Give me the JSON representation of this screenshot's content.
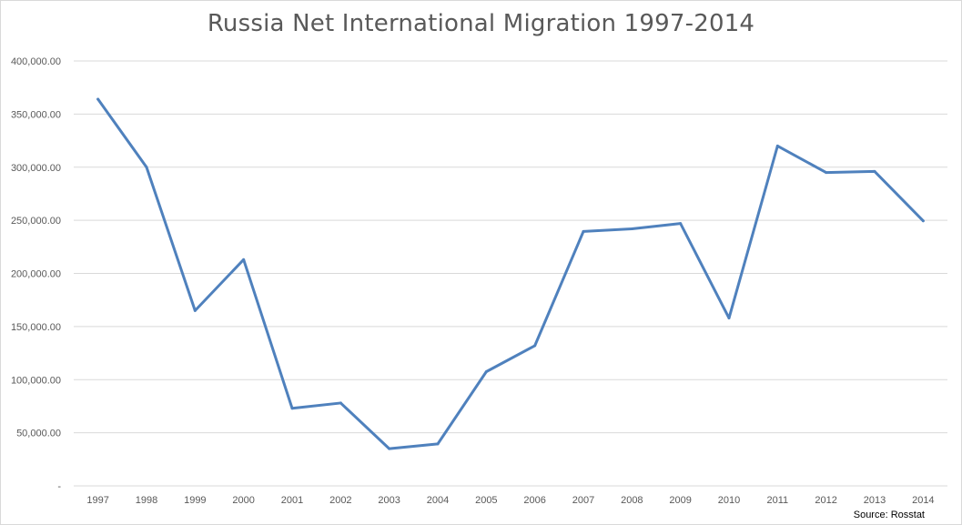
{
  "chart_data": {
    "type": "line",
    "title": "Russia Net International Migration 1997-2014",
    "source": "Source: Rosstat",
    "ylim": [
      0,
      400000
    ],
    "yticks": [
      {
        "value": 0,
        "label": "-"
      },
      {
        "value": 50000,
        "label": "50,000.00"
      },
      {
        "value": 100000,
        "label": "100,000.00"
      },
      {
        "value": 150000,
        "label": "150,000.00"
      },
      {
        "value": 200000,
        "label": "200,000.00"
      },
      {
        "value": 250000,
        "label": "250,000.00"
      },
      {
        "value": 300000,
        "label": "300,000.00"
      },
      {
        "value": 350000,
        "label": "350,000.00"
      },
      {
        "value": 400000,
        "label": "400,000.00"
      }
    ],
    "categories": [
      "1997",
      "1998",
      "1999",
      "2000",
      "2001",
      "2002",
      "2003",
      "2004",
      "2005",
      "2006",
      "2007",
      "2008",
      "2009",
      "2010",
      "2011",
      "2012",
      "2013",
      "2014"
    ],
    "series": [
      {
        "values": [
          364000,
          300000,
          165000,
          213000,
          73000,
          78000,
          35000,
          39500,
          107500,
          132000,
          239500,
          242000,
          247000,
          158000,
          320000,
          295000,
          296000,
          249500
        ],
        "color": "#4f81bd"
      }
    ],
    "grid": true,
    "gridColor": "#d9d9d9"
  }
}
